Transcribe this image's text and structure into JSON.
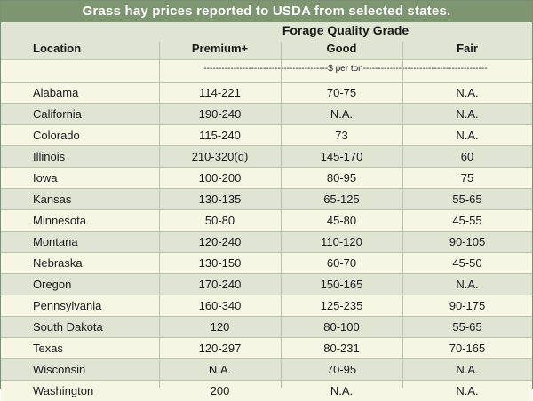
{
  "title": "Grass hay prices reported to USDA from selected states.",
  "header": {
    "location": "Location",
    "grade_title": "Forage Quality Grade",
    "premium": "Premium+",
    "good": "Good",
    "fair": "Fair"
  },
  "units": "------------------------------------------$ per ton------------------------------------------",
  "rows": [
    {
      "location": "Alabama",
      "premium": "114-221",
      "good": "70-75",
      "fair": "N.A."
    },
    {
      "location": "California",
      "premium": "190-240",
      "good": "N.A.",
      "fair": "N.A."
    },
    {
      "location": "Colorado",
      "premium": "115-240",
      "good": "73",
      "fair": "N.A."
    },
    {
      "location": "Illinois",
      "premium": "210-320(d)",
      "good": "145-170",
      "fair": "60"
    },
    {
      "location": "Iowa",
      "premium": "100-200",
      "good": "80-95",
      "fair": "75"
    },
    {
      "location": "Kansas",
      "premium": "130-135",
      "good": "65-125",
      "fair": "55-65"
    },
    {
      "location": "Minnesota",
      "premium": "50-80",
      "good": "45-80",
      "fair": "45-55"
    },
    {
      "location": "Montana",
      "premium": "120-240",
      "good": "110-120",
      "fair": "90-105"
    },
    {
      "location": "Nebraska",
      "premium": "130-150",
      "good": "60-70",
      "fair": "45-50"
    },
    {
      "location": "Oregon",
      "premium": "170-240",
      "good": "150-165",
      "fair": "N.A."
    },
    {
      "location": "Pennsylvania",
      "premium": "160-340",
      "good": "125-235",
      "fair": "90-175"
    },
    {
      "location": "South Dakota",
      "premium": "120",
      "good": "80-100",
      "fair": "55-65"
    },
    {
      "location": "Texas",
      "premium": "120-297",
      "good": "80-231",
      "fair": "70-165"
    },
    {
      "location": "Wisconsin",
      "premium": "N.A.",
      "good": "70-95",
      "fair": "N.A."
    },
    {
      "location": "Washington",
      "premium": "200",
      "good": "N.A.",
      "fair": "N.A."
    }
  ],
  "colors": {
    "title_bg": "#7d9570",
    "row_light": "#f6f6e4",
    "row_dark": "#dfe5d2"
  }
}
